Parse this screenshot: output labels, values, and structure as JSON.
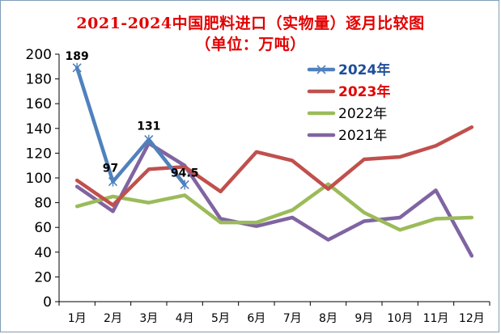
{
  "chart_data": {
    "type": "line",
    "title": "2021-2024中国肥料进口（实物量）逐月比较图",
    "subtitle": "（单位：万吨）",
    "categories": [
      "1月",
      "2月",
      "3月",
      "4月",
      "5月",
      "6月",
      "7月",
      "8月",
      "9月",
      "10月",
      "11月",
      "12月"
    ],
    "ylim": [
      0,
      200
    ],
    "yticks": [
      0,
      20,
      40,
      60,
      80,
      100,
      120,
      140,
      160,
      180,
      200
    ],
    "grid": false,
    "legend_position": "right",
    "series": [
      {
        "name": "2024年",
        "color": "#4f81bd",
        "marker": "x",
        "bold": true,
        "label_color": "#1f4e9a",
        "values": [
          189,
          97,
          131,
          94.5,
          null,
          null,
          null,
          null,
          null,
          null,
          null,
          null
        ],
        "data_labels": [
          "189",
          "97",
          "131",
          "94.5"
        ]
      },
      {
        "name": "2023年",
        "color": "#c0504d",
        "marker": "none",
        "bold": true,
        "label_color": "#e30000",
        "values": [
          98,
          78,
          107,
          109,
          89,
          121,
          114,
          91,
          115,
          117,
          126,
          141
        ]
      },
      {
        "name": "2022年",
        "color": "#9bbb59",
        "marker": "none",
        "bold": false,
        "label_color": "#000000",
        "values": [
          77,
          85,
          80,
          86,
          64,
          64,
          74,
          95,
          72,
          58,
          67,
          68
        ]
      },
      {
        "name": "2021年",
        "color": "#8064a2",
        "marker": "none",
        "bold": false,
        "label_color": "#000000",
        "values": [
          93,
          73,
          128,
          110,
          67,
          61,
          68,
          50,
          65,
          68,
          90,
          37
        ]
      }
    ]
  }
}
